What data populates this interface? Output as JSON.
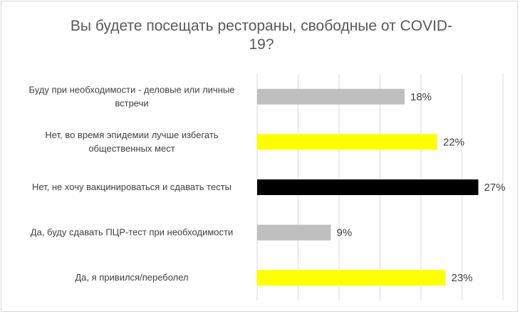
{
  "chart_data": {
    "type": "bar",
    "orientation": "horizontal",
    "title": "Вы будете посещать рестораны, свободные от COVID-\n19?",
    "categories": [
      [
        "Буду при необходимости - деловые или личные",
        "встречи"
      ],
      [
        "Нет, во время эпидемии лучше избегать",
        "общественных мест"
      ],
      [
        "Нет, не хочу вакцинироваться и сдавать тесты"
      ],
      [
        "Да, буду сдавать ПЦР-тест при необходимости"
      ],
      [
        "Да, я привился/переболел"
      ]
    ],
    "values": [
      18,
      22,
      27,
      9,
      23
    ],
    "value_labels": [
      "18%",
      "22%",
      "27%",
      "9%",
      "23%"
    ],
    "colors": [
      "#bfbfbf",
      "#ffff00",
      "#000000",
      "#bfbfbf",
      "#ffff00"
    ],
    "xlim": [
      0,
      30
    ],
    "grid": true,
    "legend": "none"
  }
}
